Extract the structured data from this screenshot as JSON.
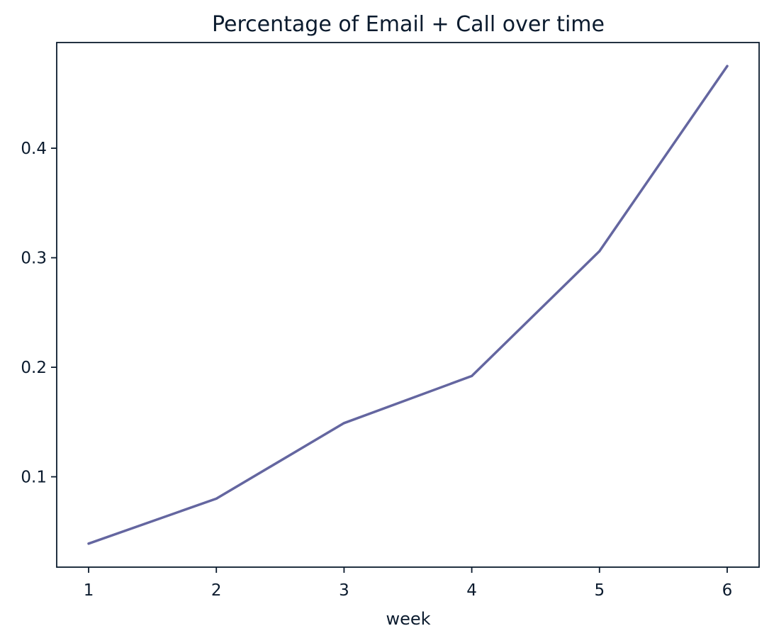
{
  "chart_data": {
    "type": "line",
    "title": "Percentage of Email + Call over time",
    "xlabel": "week",
    "ylabel": "",
    "x": [
      1,
      2,
      3,
      4,
      5,
      6
    ],
    "series": [
      {
        "values": [
          0.039,
          0.08,
          0.149,
          0.192,
          0.306,
          0.475
        ]
      }
    ],
    "xlim": [
      0.75,
      6.25
    ],
    "ylim": [
      0.0175,
      0.4965
    ],
    "xticks": [
      1,
      2,
      3,
      4,
      5,
      6
    ],
    "xtick_labels": [
      "1",
      "2",
      "3",
      "4",
      "5",
      "6"
    ],
    "yticks": [
      0.1,
      0.2,
      0.3,
      0.4
    ],
    "ytick_labels": [
      "0.1",
      "0.2",
      "0.3",
      "0.4"
    ],
    "grid": false,
    "legend": "none",
    "colors": {
      "line": "#6466a0",
      "axes": "#0b1b2e"
    }
  }
}
